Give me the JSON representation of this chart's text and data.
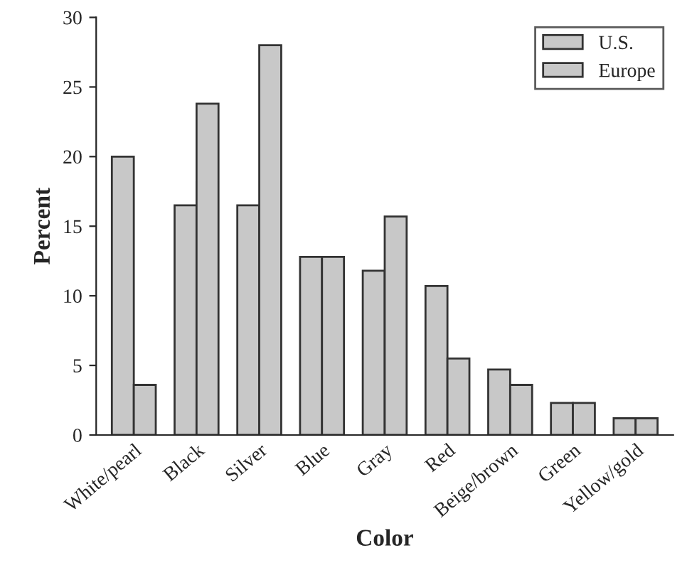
{
  "chart_data": {
    "type": "bar",
    "xlabel": "Color",
    "ylabel": "Percent",
    "categories": [
      "White/pearl",
      "Black",
      "Silver",
      "Blue",
      "Gray",
      "Red",
      "Beige/brown",
      "Green",
      "Yellow/gold"
    ],
    "series": [
      {
        "name": "U.S.",
        "color": "#c8c8c8",
        "values": [
          20,
          16.5,
          16.5,
          12.8,
          11.8,
          10.7,
          4.7,
          2.3,
          1.2
        ]
      },
      {
        "name": "Europe",
        "color": "#c8c8c8",
        "values": [
          3.6,
          23.8,
          28,
          12.8,
          15.7,
          5.5,
          3.6,
          2.3,
          1.2
        ]
      }
    ],
    "ylim": [
      0,
      30
    ],
    "yticks": [
      0,
      5,
      10,
      15,
      20,
      25,
      30
    ],
    "grid": false,
    "legend": "top right"
  }
}
